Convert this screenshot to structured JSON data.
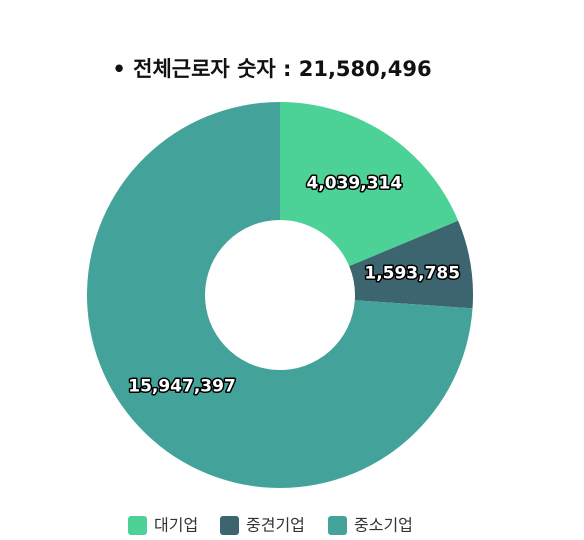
{
  "chart_data": {
    "type": "donut",
    "title": "• 전체근로자 숫자 : 21,580,496",
    "categories": [
      "대기업",
      "중견기업",
      "중소기업"
    ],
    "values": [
      4039314,
      1593785,
      15947397
    ],
    "value_labels": [
      "4,039,314",
      "1,593,785",
      "15,947,397"
    ],
    "colors": [
      "#4cd197",
      "#3c6570",
      "#43a39b"
    ],
    "legend": "bottom"
  }
}
